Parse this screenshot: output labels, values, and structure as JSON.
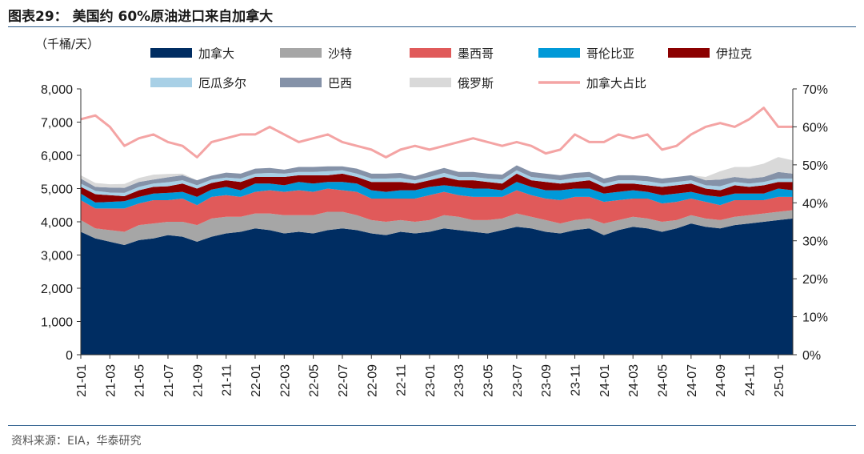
{
  "figure": {
    "title": "图表29： 美国约 60%原油进口来自加拿大",
    "source": "资料来源：EIA，华泰研究"
  },
  "chart_data": {
    "type": "area",
    "stacked": true,
    "secondary_line": true,
    "unit_label": "（千桶/天）",
    "x_tick_labels": [
      "21-01",
      "21-03",
      "21-05",
      "21-07",
      "21-09",
      "21-11",
      "22-01",
      "22-03",
      "22-05",
      "22-07",
      "22-09",
      "22-11",
      "23-01",
      "23-03",
      "23-05",
      "23-07",
      "23-09",
      "23-11",
      "24-01",
      "24-03",
      "24-05",
      "24-07",
      "24-09",
      "24-11",
      "25-01"
    ],
    "x_months": [
      "21-01",
      "21-02",
      "21-03",
      "21-04",
      "21-05",
      "21-06",
      "21-07",
      "21-08",
      "21-09",
      "21-10",
      "21-11",
      "21-12",
      "22-01",
      "22-02",
      "22-03",
      "22-04",
      "22-05",
      "22-06",
      "22-07",
      "22-08",
      "22-09",
      "22-10",
      "22-11",
      "22-12",
      "23-01",
      "23-02",
      "23-03",
      "23-04",
      "23-05",
      "23-06",
      "23-07",
      "23-08",
      "23-09",
      "23-10",
      "23-11",
      "23-12",
      "24-01",
      "24-02",
      "24-03",
      "24-04",
      "24-05",
      "24-06",
      "24-07",
      "24-08",
      "24-09",
      "24-10",
      "24-11",
      "24-12",
      "25-01",
      "25-02"
    ],
    "ylim_left": [
      0,
      8000
    ],
    "ylim_right": [
      0,
      70
    ],
    "y_ticks_left": [
      "0",
      "1,000",
      "2,000",
      "3,000",
      "4,000",
      "5,000",
      "6,000",
      "7,000",
      "8,000"
    ],
    "y_ticks_right": [
      "0%",
      "10%",
      "20%",
      "30%",
      "40%",
      "50%",
      "60%",
      "70%"
    ],
    "grid": false,
    "legend_position": "top",
    "series": [
      {
        "name": "加拿大",
        "color": "#002d62",
        "values": [
          3700,
          3500,
          3400,
          3300,
          3450,
          3500,
          3600,
          3550,
          3400,
          3550,
          3650,
          3700,
          3800,
          3750,
          3650,
          3700,
          3650,
          3750,
          3800,
          3750,
          3650,
          3600,
          3700,
          3650,
          3700,
          3800,
          3750,
          3700,
          3650,
          3750,
          3850,
          3800,
          3700,
          3650,
          3750,
          3800,
          3600,
          3750,
          3850,
          3800,
          3700,
          3800,
          3950,
          3850,
          3800,
          3900,
          3950,
          4000,
          4050,
          4100
        ]
      },
      {
        "name": "沙特",
        "color": "#a6a6a6",
        "values": [
          350,
          300,
          350,
          400,
          450,
          450,
          400,
          450,
          500,
          550,
          500,
          450,
          450,
          500,
          550,
          500,
          550,
          550,
          500,
          450,
          400,
          400,
          350,
          350,
          350,
          400,
          400,
          350,
          400,
          350,
          400,
          350,
          350,
          300,
          300,
          300,
          350,
          300,
          300,
          300,
          300,
          250,
          250,
          250,
          250,
          250,
          250,
          250,
          250,
          250
        ]
      },
      {
        "name": "墨西哥",
        "color": "#e05a5a",
        "values": [
          600,
          600,
          650,
          700,
          650,
          700,
          650,
          700,
          600,
          650,
          650,
          600,
          650,
          700,
          700,
          750,
          700,
          700,
          650,
          700,
          650,
          700,
          650,
          700,
          750,
          700,
          650,
          700,
          700,
          650,
          700,
          650,
          650,
          700,
          700,
          650,
          650,
          600,
          550,
          600,
          550,
          550,
          500,
          500,
          450,
          500,
          450,
          400,
          450,
          400
        ]
      },
      {
        "name": "哥伦比亚",
        "color": "#0099d8",
        "values": [
          200,
          180,
          200,
          220,
          200,
          200,
          220,
          200,
          250,
          220,
          250,
          200,
          250,
          200,
          200,
          250,
          250,
          200,
          250,
          250,
          250,
          200,
          250,
          250,
          250,
          200,
          250,
          250,
          250,
          200,
          250,
          250,
          250,
          300,
          250,
          250,
          250,
          250,
          250,
          200,
          250,
          250,
          200,
          200,
          250,
          200,
          200,
          200,
          250,
          200
        ]
      },
      {
        "name": "伊拉克",
        "color": "#8b0000",
        "values": [
          200,
          250,
          200,
          150,
          200,
          200,
          200,
          250,
          250,
          200,
          200,
          250,
          200,
          200,
          250,
          200,
          250,
          200,
          250,
          200,
          250,
          300,
          250,
          200,
          200,
          250,
          200,
          250,
          200,
          200,
          250,
          200,
          250,
          200,
          200,
          250,
          200,
          250,
          200,
          200,
          250,
          250,
          250,
          200,
          200,
          250,
          200,
          250,
          200,
          250
        ]
      },
      {
        "name": "厄瓜多尔",
        "color": "#a8d0e6",
        "values": [
          100,
          100,
          80,
          100,
          100,
          100,
          120,
          100,
          100,
          100,
          80,
          100,
          100,
          120,
          100,
          100,
          100,
          120,
          100,
          100,
          100,
          100,
          120,
          100,
          100,
          120,
          100,
          100,
          100,
          120,
          100,
          100,
          100,
          100,
          120,
          100,
          100,
          100,
          100,
          120,
          100,
          100,
          100,
          100,
          120,
          100,
          100,
          100,
          100,
          100
        ]
      },
      {
        "name": "巴西",
        "color": "#8592a8",
        "values": [
          150,
          120,
          150,
          150,
          150,
          120,
          150,
          150,
          150,
          120,
          150,
          150,
          150,
          150,
          120,
          150,
          150,
          150,
          120,
          150,
          150,
          150,
          150,
          120,
          150,
          150,
          150,
          150,
          150,
          150,
          150,
          150,
          150,
          150,
          150,
          150,
          150,
          150,
          150,
          150,
          150,
          150,
          150,
          150,
          200,
          150,
          150,
          150,
          200,
          150
        ]
      },
      {
        "name": "俄罗斯",
        "color": "#d9d9d9",
        "values": [
          100,
          120,
          100,
          120,
          120,
          150,
          100,
          50,
          0,
          0,
          0,
          0,
          0,
          0,
          0,
          0,
          0,
          0,
          0,
          0,
          0,
          0,
          0,
          0,
          0,
          0,
          0,
          0,
          0,
          0,
          0,
          0,
          0,
          0,
          0,
          0,
          0,
          0,
          0,
          0,
          0,
          0,
          0,
          100,
          250,
          300,
          350,
          400,
          450,
          400
        ]
      }
    ],
    "line_series": {
      "name": "加拿大占比",
      "color": "#f4a4a4",
      "axis": "right",
      "values": [
        62,
        63,
        60,
        55,
        57,
        58,
        56,
        55,
        52,
        56,
        57,
        58,
        58,
        60,
        58,
        56,
        57,
        58,
        56,
        55,
        54,
        52,
        54,
        55,
        54,
        55,
        56,
        57,
        56,
        55,
        56,
        55,
        53,
        54,
        58,
        56,
        56,
        58,
        57,
        58,
        54,
        55,
        58,
        60,
        61,
        60,
        62,
        65,
        60,
        60
      ]
    }
  }
}
